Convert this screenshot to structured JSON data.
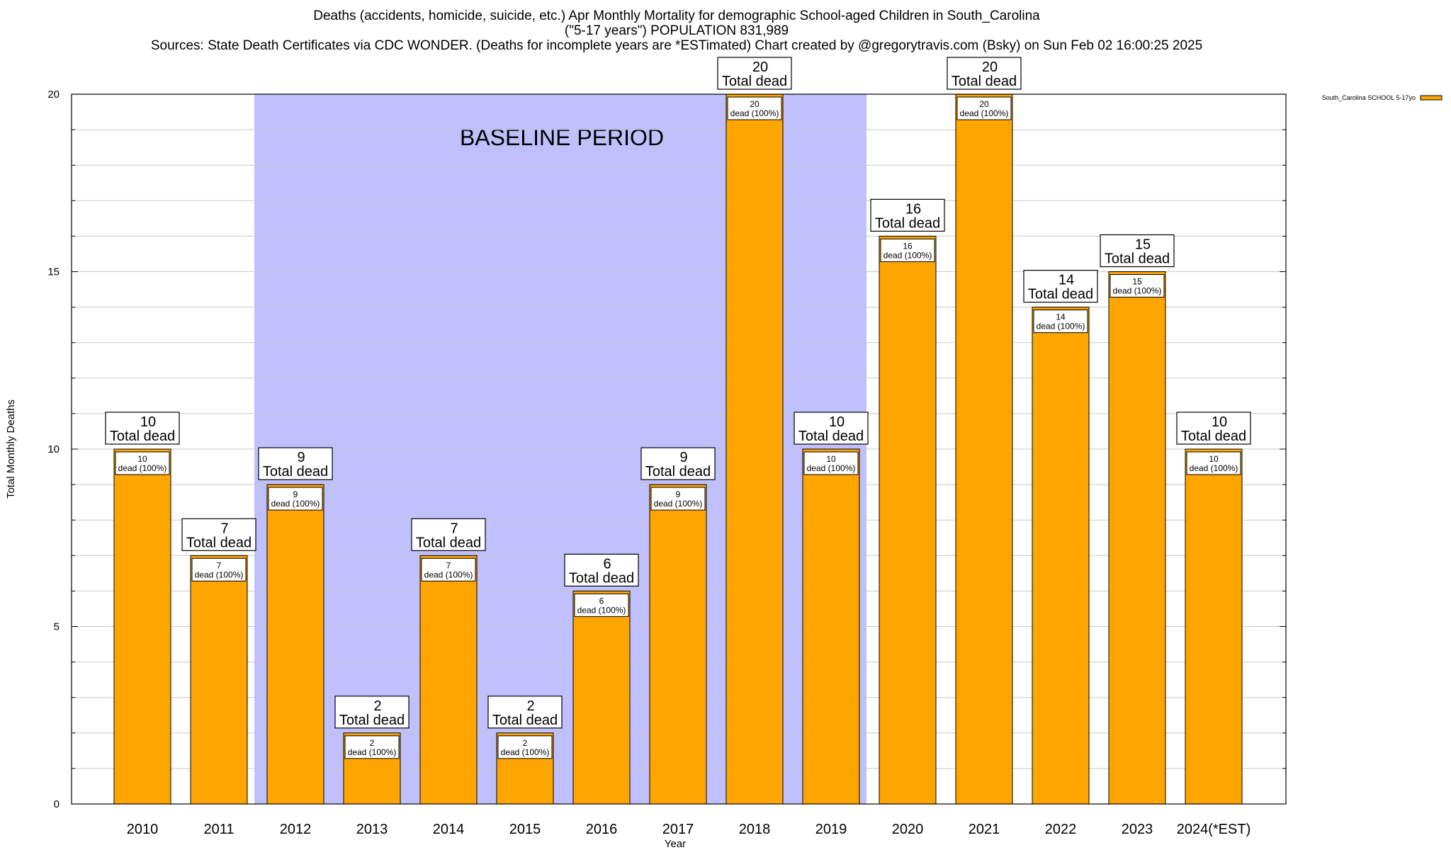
{
  "title": {
    "line1": "Deaths (accidents, homicide, suicide, etc.) Apr Monthly Mortality for demographic School-aged Children in South_Carolina",
    "line2": "(\"5-17 years\") POPULATION 831,989",
    "line3": "Sources: State Death Certificates via CDC WONDER. (Deaths for incomplete years are *ESTimated)              Chart created by @gregorytravis.com (Bsky) on Sun Feb 02 16:00:25 2025"
  },
  "colors": {
    "bar": "#ffa500",
    "baseline_band": "#c0c0ff",
    "grid": "#c8c8c8"
  },
  "chart_data": {
    "type": "bar",
    "xlabel": "Year",
    "ylabel": "Total Monthly Deaths",
    "ylim": [
      0,
      20
    ],
    "yticks": [
      0,
      5,
      10,
      15,
      20
    ],
    "categories": [
      "2010",
      "2011",
      "2012",
      "2013",
      "2014",
      "2015",
      "2016",
      "2017",
      "2018",
      "2019",
      "2020",
      "2021",
      "2022",
      "2023",
      "2024(*EST)"
    ],
    "series": [
      {
        "name": "South_Carolina SCHOOL 5-17yo",
        "values": [
          10,
          7,
          9,
          2,
          7,
          2,
          6,
          9,
          20,
          10,
          16,
          20,
          14,
          15,
          10
        ]
      }
    ],
    "total_label_suffix": "Total dead",
    "inner_label_suffix": "dead (100%)",
    "baseline": {
      "label": "BASELINE PERIOD",
      "from_category": "2012",
      "to_category": "2019"
    },
    "legend_placement": "top-right outside",
    "grid": true
  }
}
